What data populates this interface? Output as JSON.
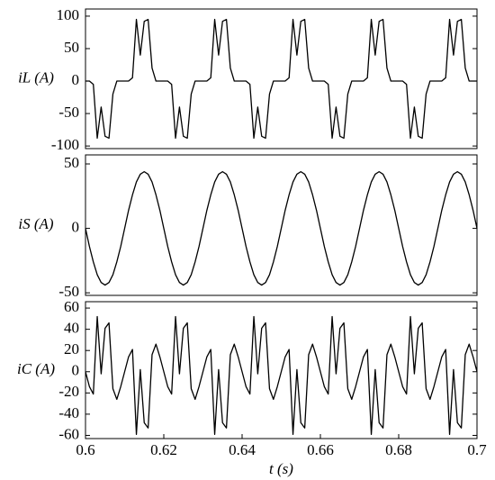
{
  "chart_data": [
    {
      "type": "line",
      "ylabel": "iL (A)",
      "color": "#000000",
      "ylim": [
        -104,
        111
      ],
      "yticks": [
        -100,
        -50,
        0,
        50,
        100
      ],
      "xlim": [
        0.6,
        0.7
      ],
      "x": [
        0.6,
        0.601,
        0.602,
        0.603,
        0.604,
        0.605,
        0.606,
        0.607,
        0.608,
        0.609,
        0.61,
        0.611,
        0.612,
        0.613,
        0.614,
        0.615,
        0.616,
        0.617,
        0.618,
        0.619,
        0.62,
        0.621,
        0.622,
        0.623,
        0.624,
        0.625,
        0.626,
        0.627,
        0.628,
        0.629,
        0.63,
        0.631,
        0.632,
        0.633,
        0.634,
        0.635,
        0.636,
        0.637,
        0.638,
        0.639,
        0.64,
        0.641,
        0.642,
        0.643,
        0.644,
        0.645,
        0.646,
        0.647,
        0.648,
        0.649,
        0.65,
        0.651,
        0.652,
        0.653,
        0.654,
        0.655,
        0.656,
        0.657,
        0.658,
        0.659,
        0.66,
        0.661,
        0.662,
        0.663,
        0.664,
        0.665,
        0.666,
        0.667,
        0.668,
        0.669,
        0.67,
        0.671,
        0.672,
        0.673,
        0.674,
        0.675,
        0.676,
        0.677,
        0.678,
        0.679,
        0.68,
        0.681,
        0.682,
        0.683,
        0.684,
        0.685,
        0.686,
        0.687,
        0.688,
        0.689,
        0.69,
        0.691,
        0.692,
        0.693,
        0.694,
        0.695,
        0.696,
        0.697,
        0.698,
        0.699,
        0.7
      ],
      "values": [
        0,
        0,
        -5,
        -88,
        -40,
        -85,
        -88,
        -20,
        0,
        0,
        0,
        0,
        5,
        95,
        40,
        92,
        95,
        20,
        0,
        0,
        0,
        0,
        -5,
        -88,
        -40,
        -85,
        -88,
        -20,
        0,
        0,
        0,
        0,
        5,
        95,
        40,
        92,
        95,
        20,
        0,
        0,
        0,
        0,
        -5,
        -88,
        -40,
        -85,
        -88,
        -20,
        0,
        0,
        0,
        0,
        5,
        95,
        40,
        92,
        95,
        20,
        0,
        0,
        0,
        0,
        -5,
        -88,
        -40,
        -85,
        -88,
        -20,
        0,
        0,
        0,
        0,
        5,
        95,
        40,
        92,
        95,
        20,
        0,
        0,
        0,
        0,
        -5,
        -88,
        -40,
        -85,
        -88,
        -20,
        0,
        0,
        0,
        0,
        5,
        95,
        40,
        92,
        95,
        20,
        0,
        0,
        0
      ]
    },
    {
      "type": "line",
      "ylabel": "iS (A)",
      "color": "#000000",
      "ylim": [
        -52,
        57
      ],
      "yticks": [
        -50,
        0,
        50
      ],
      "xlim": [
        0.6,
        0.7
      ],
      "x": [
        0.6,
        0.601,
        0.602,
        0.603,
        0.604,
        0.605,
        0.606,
        0.607,
        0.608,
        0.609,
        0.61,
        0.611,
        0.612,
        0.613,
        0.614,
        0.615,
        0.616,
        0.617,
        0.618,
        0.619,
        0.62,
        0.621,
        0.622,
        0.623,
        0.624,
        0.625,
        0.626,
        0.627,
        0.628,
        0.629,
        0.63,
        0.631,
        0.632,
        0.633,
        0.634,
        0.635,
        0.636,
        0.637,
        0.638,
        0.639,
        0.64,
        0.641,
        0.642,
        0.643,
        0.644,
        0.645,
        0.646,
        0.647,
        0.648,
        0.649,
        0.65,
        0.651,
        0.652,
        0.653,
        0.654,
        0.655,
        0.656,
        0.657,
        0.658,
        0.659,
        0.66,
        0.661,
        0.662,
        0.663,
        0.664,
        0.665,
        0.666,
        0.667,
        0.668,
        0.669,
        0.67,
        0.671,
        0.672,
        0.673,
        0.674,
        0.675,
        0.676,
        0.677,
        0.678,
        0.679,
        0.68,
        0.681,
        0.682,
        0.683,
        0.684,
        0.685,
        0.686,
        0.687,
        0.688,
        0.689,
        0.69,
        0.691,
        0.692,
        0.693,
        0.694,
        0.695,
        0.696,
        0.697,
        0.698,
        0.699,
        0.7
      ],
      "values": [
        0,
        -14,
        -26,
        -36,
        -42,
        -44,
        -42,
        -36,
        -26,
        -14,
        0,
        14,
        26,
        36,
        42,
        44,
        42,
        36,
        26,
        14,
        0,
        -14,
        -26,
        -36,
        -42,
        -44,
        -42,
        -36,
        -26,
        -14,
        0,
        14,
        26,
        36,
        42,
        44,
        42,
        36,
        26,
        14,
        0,
        -14,
        -26,
        -36,
        -42,
        -44,
        -42,
        -36,
        -26,
        -14,
        0,
        14,
        26,
        36,
        42,
        44,
        42,
        36,
        26,
        14,
        0,
        -14,
        -26,
        -36,
        -42,
        -44,
        -42,
        -36,
        -26,
        -14,
        0,
        14,
        26,
        36,
        42,
        44,
        42,
        36,
        26,
        14,
        0,
        -14,
        -26,
        -36,
        -42,
        -44,
        -42,
        -36,
        -26,
        -14,
        0,
        14,
        26,
        36,
        42,
        44,
        42,
        36,
        26,
        14,
        0
      ]
    },
    {
      "type": "line",
      "ylabel": "iC (A)",
      "xlabel": "t (s)",
      "color": "#000000",
      "ylim": [
        -63,
        66
      ],
      "yticks": [
        -60,
        -40,
        -20,
        0,
        20,
        40,
        60
      ],
      "xlim": [
        0.6,
        0.7
      ],
      "xticks": [
        0.6,
        0.62,
        0.64,
        0.66,
        0.68,
        0.7
      ],
      "x": [
        0.6,
        0.601,
        0.602,
        0.603,
        0.604,
        0.605,
        0.606,
        0.607,
        0.608,
        0.609,
        0.61,
        0.611,
        0.612,
        0.613,
        0.614,
        0.615,
        0.616,
        0.617,
        0.618,
        0.619,
        0.62,
        0.621,
        0.622,
        0.623,
        0.624,
        0.625,
        0.626,
        0.627,
        0.628,
        0.629,
        0.63,
        0.631,
        0.632,
        0.633,
        0.634,
        0.635,
        0.636,
        0.637,
        0.638,
        0.639,
        0.64,
        0.641,
        0.642,
        0.643,
        0.644,
        0.645,
        0.646,
        0.647,
        0.648,
        0.649,
        0.65,
        0.651,
        0.652,
        0.653,
        0.654,
        0.655,
        0.656,
        0.657,
        0.658,
        0.659,
        0.66,
        0.661,
        0.662,
        0.663,
        0.664,
        0.665,
        0.666,
        0.667,
        0.668,
        0.669,
        0.67,
        0.671,
        0.672,
        0.673,
        0.674,
        0.675,
        0.676,
        0.677,
        0.678,
        0.679,
        0.68,
        0.681,
        0.682,
        0.683,
        0.684,
        0.685,
        0.686,
        0.687,
        0.688,
        0.689,
        0.69,
        0.691,
        0.692,
        0.693,
        0.694,
        0.695,
        0.696,
        0.697,
        0.698,
        0.699,
        0.7
      ],
      "values": [
        0,
        -14,
        -21,
        52,
        -2,
        41,
        46,
        -16,
        -26,
        -14,
        0,
        14,
        21,
        -59,
        2,
        -48,
        -53,
        16,
        26,
        14,
        0,
        -14,
        -21,
        52,
        -2,
        41,
        46,
        -16,
        -26,
        -14,
        0,
        14,
        21,
        -59,
        2,
        -48,
        -53,
        16,
        26,
        14,
        0,
        -14,
        -21,
        52,
        -2,
        41,
        46,
        -16,
        -26,
        -14,
        0,
        14,
        21,
        -59,
        2,
        -48,
        -53,
        16,
        26,
        14,
        0,
        -14,
        -21,
        52,
        -2,
        41,
        46,
        -16,
        -26,
        -14,
        0,
        14,
        21,
        -59,
        2,
        -48,
        -53,
        16,
        26,
        14,
        0,
        -14,
        -21,
        52,
        -2,
        41,
        46,
        -16,
        -26,
        -14,
        0,
        14,
        21,
        -59,
        2,
        -48,
        -53,
        16,
        26,
        14,
        0
      ]
    }
  ]
}
